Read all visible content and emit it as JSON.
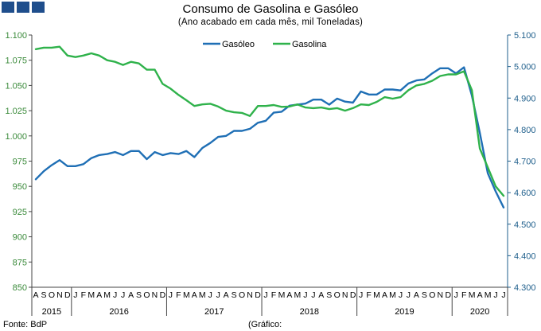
{
  "title": "Consumo de Gasolina e Gasóleo",
  "subtitle": "(Ano acabado em cada mês,  mil Toneladas)",
  "source": "Fonte: BdP",
  "note": "(Gráfico:",
  "chart_data": {
    "type": "line",
    "title": "Consumo de Gasolina e Gasóleo",
    "subtitle": "(Ano acabado em cada mês,  mil Toneladas)",
    "grid": false,
    "legend_position": "top-center",
    "y_left": {
      "series": "Gasóleo",
      "range": [
        850,
        1100
      ],
      "ticks": [
        "850",
        "875",
        "900",
        "925",
        "950",
        "975",
        "1.000",
        "1.025",
        "1.050",
        "1.075",
        "1.100"
      ]
    },
    "y_right": {
      "series": "Gasolina",
      "range": [
        4300,
        5100
      ],
      "ticks": [
        "4.300",
        "4.400",
        "4.500",
        "4.600",
        "4.700",
        "4.800",
        "4.900",
        "5.000",
        "5.100"
      ]
    },
    "x_months": [
      "A",
      "S",
      "O",
      "N",
      "D",
      "J",
      "F",
      "M",
      "A",
      "M",
      "J",
      "J",
      "A",
      "S",
      "O",
      "N",
      "D",
      "J",
      "F",
      "M",
      "A",
      "M",
      "J",
      "J",
      "A",
      "S",
      "O",
      "N",
      "D",
      "J",
      "F",
      "M",
      "A",
      "M",
      "J",
      "J",
      "A",
      "S",
      "O",
      "N",
      "D",
      "J",
      "F",
      "M",
      "A",
      "M",
      "J",
      "J",
      "A",
      "S",
      "O",
      "N",
      "D",
      "J",
      "F",
      "M",
      "A",
      "M",
      "J",
      "J"
    ],
    "x_years": [
      {
        "label": "2015",
        "start": 0,
        "count": 5
      },
      {
        "label": "2016",
        "start": 5,
        "count": 12
      },
      {
        "label": "2017",
        "start": 17,
        "count": 12
      },
      {
        "label": "2018",
        "start": 29,
        "count": 12
      },
      {
        "label": "2019",
        "start": 41,
        "count": 12
      },
      {
        "label": "2020",
        "start": 53,
        "count": 7
      }
    ],
    "series": [
      {
        "name": "Gasóleo",
        "axis": "left",
        "color": "#1f6fb5",
        "values": [
          957,
          965,
          971,
          976,
          970,
          970,
          972,
          978,
          981,
          982,
          984,
          981,
          985,
          985,
          977,
          984,
          981,
          983,
          982,
          985,
          979,
          988,
          993,
          999,
          1000,
          1005,
          1005,
          1007,
          1013,
          1015,
          1023,
          1024,
          1030,
          1031,
          1032,
          1036,
          1036,
          1031,
          1037,
          1034,
          1033,
          1044,
          1041,
          1041,
          1046,
          1046,
          1045,
          1052,
          1055,
          1056,
          1062,
          1067,
          1067,
          1062,
          1068,
          1040,
          1003,
          963,
          945,
          929
        ]
      },
      {
        "name": "Gasolina",
        "axis": "right",
        "color": "#2fb24b",
        "values": [
          5055,
          5060,
          5060,
          5063,
          5035,
          5030,
          5035,
          5042,
          5035,
          5020,
          5015,
          5005,
          5015,
          5010,
          4990,
          4990,
          4945,
          4930,
          4910,
          4893,
          4875,
          4880,
          4882,
          4873,
          4860,
          4855,
          4853,
          4843,
          4875,
          4875,
          4878,
          4872,
          4873,
          4880,
          4870,
          4868,
          4870,
          4865,
          4868,
          4860,
          4868,
          4880,
          4878,
          4888,
          4903,
          4898,
          4903,
          4925,
          4940,
          4945,
          4955,
          4970,
          4975,
          4975,
          4985,
          4925,
          4740,
          4680,
          4620,
          4590
        ]
      }
    ]
  }
}
